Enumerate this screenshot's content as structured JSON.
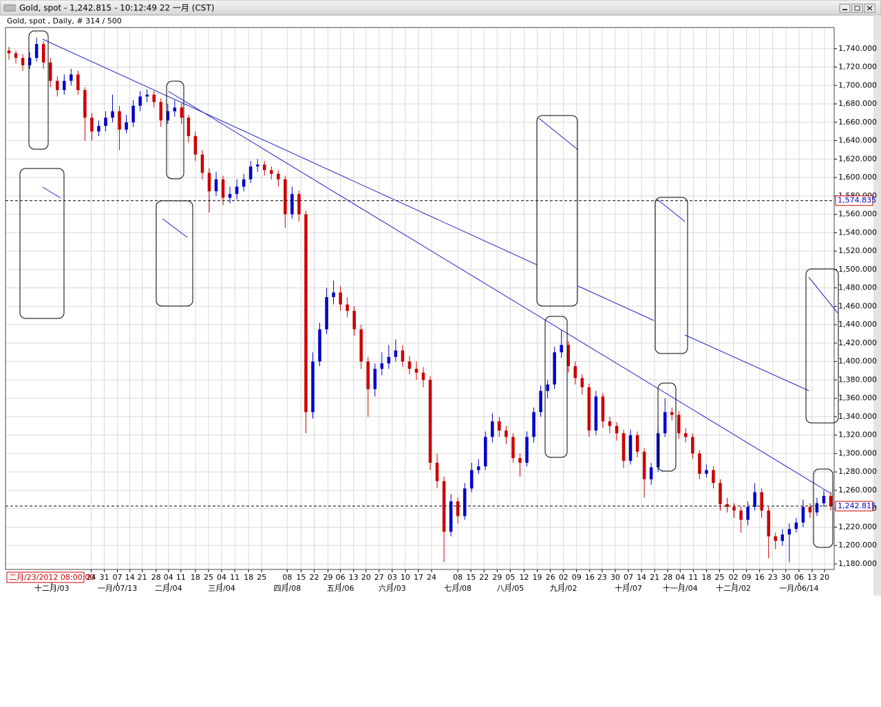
{
  "window_title": "Gold, spot - 1,242.815 - 10:12:49  22 一月 (CST)",
  "chart_data": {
    "type": "candlestick",
    "subtitle": "Gold, spot , Daily, # 314 / 500",
    "cursor_label": "二月/23/2012 08:00:00",
    "up_color": "#0000cc",
    "down_color": "#cc0000",
    "grid": true,
    "ylim": [
      1174,
      1763
    ],
    "yticks": [
      {
        "value": 1180,
        "label": "1,180.000"
      },
      {
        "value": 1200,
        "label": "1,200.000"
      },
      {
        "value": 1220,
        "label": "1,220.000"
      },
      {
        "value": 1240,
        "label": "1,240.000"
      },
      {
        "value": 1260,
        "label": "1,260.000"
      },
      {
        "value": 1280,
        "label": "1,280.000"
      },
      {
        "value": 1300,
        "label": "1,300.000"
      },
      {
        "value": 1320,
        "label": "1,320.000"
      },
      {
        "value": 1340,
        "label": "1,340.000"
      },
      {
        "value": 1360,
        "label": "1,360.000"
      },
      {
        "value": 1380,
        "label": "1,380.000"
      },
      {
        "value": 1400,
        "label": "1,400.000"
      },
      {
        "value": 1420,
        "label": "1,420.000"
      },
      {
        "value": 1440,
        "label": "1,440.000"
      },
      {
        "value": 1460,
        "label": "1,460.000"
      },
      {
        "value": 1480,
        "label": "1,480.000"
      },
      {
        "value": 1500,
        "label": "1,500.000"
      },
      {
        "value": 1520,
        "label": "1,520.000"
      },
      {
        "value": 1540,
        "label": "1,540.000"
      },
      {
        "value": 1560,
        "label": "1,560.000"
      },
      {
        "value": 1580,
        "label": "1,580.000"
      },
      {
        "value": 1600,
        "label": "1,600.000"
      },
      {
        "value": 1620,
        "label": "1,620.000"
      },
      {
        "value": 1640,
        "label": "1,640.000"
      },
      {
        "value": 1660,
        "label": "1,660.000"
      },
      {
        "value": 1680,
        "label": "1,680.000"
      },
      {
        "value": 1700,
        "label": "1,700.000"
      },
      {
        "value": 1720,
        "label": "1,720.000"
      },
      {
        "value": 1740,
        "label": "1,740.000"
      }
    ],
    "price_lines": [
      {
        "value": 1574.835,
        "label": "1,574.835"
      },
      {
        "value": 1242.815,
        "label": "1,242.815"
      }
    ],
    "xlim": [
      -0.5,
      119.5
    ],
    "xticks": [
      {
        "value": 11.9,
        "label": "24"
      },
      {
        "value": 13.8,
        "label": "31"
      },
      {
        "value": 15.7,
        "label": "07"
      },
      {
        "value": 17.5,
        "label": "14"
      },
      {
        "value": 19.3,
        "label": "21"
      },
      {
        "value": 21.3,
        "label": "28"
      },
      {
        "value": 23.1,
        "label": "04"
      },
      {
        "value": 24.9,
        "label": "11"
      },
      {
        "value": 27.0,
        "label": "18"
      },
      {
        "value": 28.9,
        "label": "25"
      },
      {
        "value": 30.8,
        "label": "04"
      },
      {
        "value": 32.7,
        "label": "11"
      },
      {
        "value": 34.7,
        "label": "18"
      },
      {
        "value": 36.6,
        "label": "25"
      },
      {
        "value": 40.3,
        "label": "08"
      },
      {
        "value": 42.3,
        "label": "15"
      },
      {
        "value": 44.2,
        "label": "22"
      },
      {
        "value": 46.2,
        "label": "29"
      },
      {
        "value": 48.0,
        "label": "06"
      },
      {
        "value": 49.9,
        "label": "13"
      },
      {
        "value": 51.7,
        "label": "20"
      },
      {
        "value": 53.6,
        "label": "27"
      },
      {
        "value": 55.5,
        "label": "03"
      },
      {
        "value": 57.4,
        "label": "10"
      },
      {
        "value": 59.3,
        "label": "17"
      },
      {
        "value": 61.2,
        "label": "24"
      },
      {
        "value": 65.0,
        "label": "08"
      },
      {
        "value": 66.9,
        "label": "15"
      },
      {
        "value": 68.8,
        "label": "22"
      },
      {
        "value": 70.7,
        "label": "29"
      },
      {
        "value": 72.6,
        "label": "05"
      },
      {
        "value": 74.6,
        "label": "12"
      },
      {
        "value": 76.5,
        "label": "19"
      },
      {
        "value": 78.4,
        "label": "26"
      },
      {
        "value": 80.3,
        "label": "02"
      },
      {
        "value": 82.2,
        "label": "09"
      },
      {
        "value": 84.1,
        "label": "16"
      },
      {
        "value": 85.9,
        "label": "23"
      },
      {
        "value": 87.8,
        "label": "30"
      },
      {
        "value": 89.7,
        "label": "07"
      },
      {
        "value": 91.6,
        "label": "14"
      },
      {
        "value": 93.5,
        "label": "21"
      },
      {
        "value": 95.4,
        "label": "28"
      },
      {
        "value": 97.2,
        "label": "04"
      },
      {
        "value": 99.1,
        "label": "11"
      },
      {
        "value": 101.0,
        "label": "18"
      },
      {
        "value": 102.9,
        "label": "25"
      },
      {
        "value": 104.9,
        "label": "02"
      },
      {
        "value": 106.8,
        "label": "09"
      },
      {
        "value": 108.7,
        "label": "16"
      },
      {
        "value": 110.6,
        "label": "23"
      },
      {
        "value": 112.5,
        "label": "30"
      },
      {
        "value": 114.4,
        "label": "06"
      },
      {
        "value": 116.3,
        "label": "13"
      },
      {
        "value": 118.1,
        "label": "20"
      }
    ],
    "xticks_major": [
      {
        "value": 6.2,
        "label": "十二月/03"
      },
      {
        "value": 15.7,
        "label": "一月/07/13"
      },
      {
        "value": 23.1,
        "label": "二月/04"
      },
      {
        "value": 30.8,
        "label": "三月/04"
      },
      {
        "value": 40.3,
        "label": "四月/08"
      },
      {
        "value": 48.0,
        "label": "五月/06"
      },
      {
        "value": 55.5,
        "label": "六月/03"
      },
      {
        "value": 65.0,
        "label": "七月/08"
      },
      {
        "value": 72.6,
        "label": "八月/05"
      },
      {
        "value": 80.3,
        "label": "九月/02"
      },
      {
        "value": 89.7,
        "label": "十月/07"
      },
      {
        "value": 97.2,
        "label": "十一月/04"
      },
      {
        "value": 104.9,
        "label": "十二月/02"
      },
      {
        "value": 114.4,
        "label": "一月/06/14"
      }
    ],
    "ohlc": [
      [
        1738,
        1742,
        1728,
        1735
      ],
      [
        1735,
        1738,
        1724,
        1730
      ],
      [
        1730,
        1734,
        1716,
        1722
      ],
      [
        1722,
        1736,
        1718,
        1730
      ],
      [
        1730,
        1752,
        1726,
        1745
      ],
      [
        1745,
        1748,
        1718,
        1725
      ],
      [
        1725,
        1730,
        1698,
        1705
      ],
      [
        1705,
        1710,
        1688,
        1695
      ],
      [
        1695,
        1712,
        1690,
        1705
      ],
      [
        1705,
        1718,
        1700,
        1712
      ],
      [
        1712,
        1716,
        1690,
        1695
      ],
      [
        1695,
        1698,
        1640,
        1665
      ],
      [
        1665,
        1670,
        1640,
        1650
      ],
      [
        1650,
        1662,
        1645,
        1656
      ],
      [
        1656,
        1672,
        1650,
        1665
      ],
      [
        1665,
        1690,
        1660,
        1672
      ],
      [
        1672,
        1678,
        1630,
        1652
      ],
      [
        1652,
        1668,
        1648,
        1660
      ],
      [
        1660,
        1684,
        1655,
        1678
      ],
      [
        1678,
        1694,
        1672,
        1688
      ],
      [
        1688,
        1696,
        1682,
        1690
      ],
      [
        1690,
        1694,
        1676,
        1682
      ],
      [
        1682,
        1686,
        1655,
        1662
      ],
      [
        1662,
        1680,
        1658,
        1672
      ],
      [
        1672,
        1684,
        1666,
        1676
      ],
      [
        1676,
        1680,
        1658,
        1665
      ],
      [
        1665,
        1668,
        1638,
        1645
      ],
      [
        1645,
        1650,
        1618,
        1625
      ],
      [
        1625,
        1630,
        1598,
        1605
      ],
      [
        1605,
        1610,
        1562,
        1585
      ],
      [
        1585,
        1606,
        1580,
        1598
      ],
      [
        1598,
        1602,
        1570,
        1578
      ],
      [
        1578,
        1590,
        1572,
        1582
      ],
      [
        1582,
        1598,
        1576,
        1590
      ],
      [
        1590,
        1604,
        1585,
        1598
      ],
      [
        1598,
        1618,
        1594,
        1612
      ],
      [
        1612,
        1620,
        1606,
        1614
      ],
      [
        1614,
        1618,
        1602,
        1608
      ],
      [
        1608,
        1612,
        1598,
        1604
      ],
      [
        1604,
        1608,
        1590,
        1598
      ],
      [
        1598,
        1602,
        1545,
        1560
      ],
      [
        1560,
        1590,
        1555,
        1582
      ],
      [
        1582,
        1586,
        1552,
        1560
      ],
      [
        1560,
        1564,
        1322,
        1345
      ],
      [
        1345,
        1410,
        1338,
        1400
      ],
      [
        1400,
        1442,
        1395,
        1435
      ],
      [
        1435,
        1480,
        1430,
        1470
      ],
      [
        1470,
        1488,
        1462,
        1475
      ],
      [
        1475,
        1482,
        1455,
        1462
      ],
      [
        1462,
        1470,
        1448,
        1455
      ],
      [
        1455,
        1460,
        1428,
        1435
      ],
      [
        1435,
        1440,
        1392,
        1400
      ],
      [
        1400,
        1405,
        1340,
        1370
      ],
      [
        1370,
        1398,
        1362,
        1392
      ],
      [
        1392,
        1410,
        1385,
        1398
      ],
      [
        1398,
        1418,
        1392,
        1405
      ],
      [
        1405,
        1424,
        1400,
        1412
      ],
      [
        1412,
        1418,
        1394,
        1400
      ],
      [
        1400,
        1406,
        1386,
        1392
      ],
      [
        1392,
        1400,
        1380,
        1388
      ],
      [
        1388,
        1394,
        1372,
        1380
      ],
      [
        1380,
        1384,
        1282,
        1290
      ],
      [
        1290,
        1300,
        1262,
        1270
      ],
      [
        1270,
        1275,
        1182,
        1215
      ],
      [
        1215,
        1256,
        1210,
        1248
      ],
      [
        1248,
        1252,
        1224,
        1232
      ],
      [
        1232,
        1268,
        1228,
        1262
      ],
      [
        1262,
        1290,
        1258,
        1282
      ],
      [
        1282,
        1294,
        1278,
        1286
      ],
      [
        1286,
        1324,
        1282,
        1318
      ],
      [
        1318,
        1344,
        1312,
        1335
      ],
      [
        1335,
        1340,
        1318,
        1325
      ],
      [
        1325,
        1330,
        1310,
        1318
      ],
      [
        1318,
        1322,
        1290,
        1295
      ],
      [
        1295,
        1300,
        1275,
        1290
      ],
      [
        1290,
        1324,
        1286,
        1318
      ],
      [
        1318,
        1350,
        1312,
        1345
      ],
      [
        1345,
        1374,
        1340,
        1368
      ],
      [
        1368,
        1380,
        1360,
        1375
      ],
      [
        1375,
        1416,
        1370,
        1410
      ],
      [
        1410,
        1434,
        1404,
        1418
      ],
      [
        1418,
        1422,
        1388,
        1395
      ],
      [
        1395,
        1400,
        1375,
        1382
      ],
      [
        1382,
        1386,
        1364,
        1372
      ],
      [
        1372,
        1376,
        1318,
        1325
      ],
      [
        1325,
        1368,
        1320,
        1362
      ],
      [
        1362,
        1366,
        1328,
        1335
      ],
      [
        1335,
        1340,
        1322,
        1330
      ],
      [
        1330,
        1334,
        1314,
        1322
      ],
      [
        1322,
        1326,
        1284,
        1292
      ],
      [
        1292,
        1326,
        1288,
        1320
      ],
      [
        1320,
        1324,
        1296,
        1302
      ],
      [
        1302,
        1306,
        1252,
        1272
      ],
      [
        1272,
        1290,
        1266,
        1285
      ],
      [
        1285,
        1328,
        1280,
        1322
      ],
      [
        1322,
        1360,
        1318,
        1345
      ],
      [
        1345,
        1350,
        1336,
        1342
      ],
      [
        1342,
        1346,
        1316,
        1322
      ],
      [
        1322,
        1328,
        1312,
        1318
      ],
      [
        1318,
        1322,
        1294,
        1300
      ],
      [
        1300,
        1304,
        1272,
        1278
      ],
      [
        1278,
        1288,
        1274,
        1282
      ],
      [
        1282,
        1286,
        1262,
        1268
      ],
      [
        1268,
        1272,
        1238,
        1245
      ],
      [
        1245,
        1252,
        1236,
        1242
      ],
      [
        1242,
        1246,
        1230,
        1238
      ],
      [
        1238,
        1242,
        1214,
        1228
      ],
      [
        1228,
        1248,
        1222,
        1242
      ],
      [
        1242,
        1268,
        1238,
        1258
      ],
      [
        1258,
        1262,
        1230,
        1238
      ],
      [
        1238,
        1242,
        1186,
        1210
      ],
      [
        1210,
        1214,
        1196,
        1205
      ],
      [
        1205,
        1218,
        1200,
        1212
      ],
      [
        1212,
        1224,
        1182,
        1218
      ],
      [
        1218,
        1230,
        1214,
        1225
      ],
      [
        1225,
        1250,
        1220,
        1242
      ],
      [
        1242,
        1246,
        1230,
        1236
      ],
      [
        1236,
        1252,
        1232,
        1246
      ],
      [
        1246,
        1260,
        1242,
        1254
      ],
      [
        1254,
        1258,
        1238,
        1243
      ]
    ]
  }
}
